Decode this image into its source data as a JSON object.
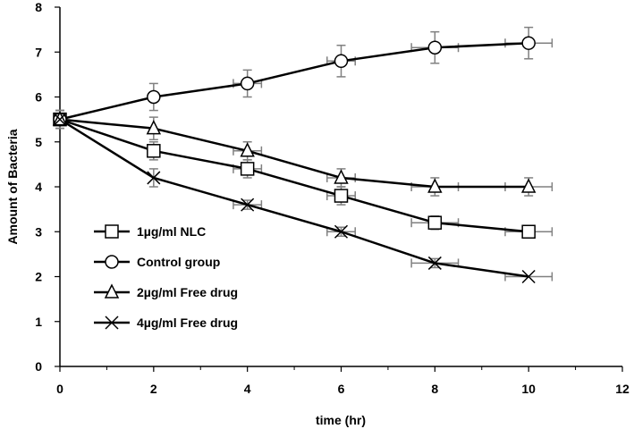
{
  "chart_data": {
    "type": "line",
    "title": "",
    "xlabel": "time (hr)",
    "ylabel": "Amount of Bacteria",
    "xlim": [
      0,
      12
    ],
    "ylim": [
      0,
      8
    ],
    "xticks": [
      0,
      2,
      4,
      6,
      8,
      10,
      12
    ],
    "yticks": [
      0,
      1,
      2,
      3,
      4,
      5,
      6,
      7,
      8
    ],
    "grid": false,
    "legend_position": "bottom-left",
    "x": [
      0,
      2,
      4,
      6,
      8,
      10
    ],
    "x_error": [
      0,
      0,
      0.3,
      0.3,
      0.5,
      0.5
    ],
    "series": [
      {
        "name": "1µg/ml NLC",
        "marker": "square",
        "values": [
          5.5,
          4.8,
          4.4,
          3.8,
          3.2,
          3.0
        ],
        "errors": [
          0.2,
          0.2,
          0.2,
          0.2,
          0.15,
          0.0
        ]
      },
      {
        "name": "Control group",
        "marker": "circle",
        "values": [
          5.5,
          6.0,
          6.3,
          6.8,
          7.1,
          7.2
        ],
        "errors": [
          0.2,
          0.3,
          0.3,
          0.35,
          0.35,
          0.35
        ]
      },
      {
        "name": "2µg/ml Free drug",
        "marker": "triangle",
        "values": [
          5.5,
          5.3,
          4.8,
          4.2,
          4.0,
          4.0
        ],
        "errors": [
          0.2,
          0.25,
          0.2,
          0.2,
          0.2,
          0.2
        ]
      },
      {
        "name": "4µg/ml Free drug",
        "marker": "x",
        "values": [
          5.5,
          4.2,
          3.6,
          3.0,
          2.3,
          2.0
        ],
        "errors": [
          0.2,
          0.2,
          0.1,
          0.1,
          0.1,
          0.0
        ]
      }
    ]
  }
}
